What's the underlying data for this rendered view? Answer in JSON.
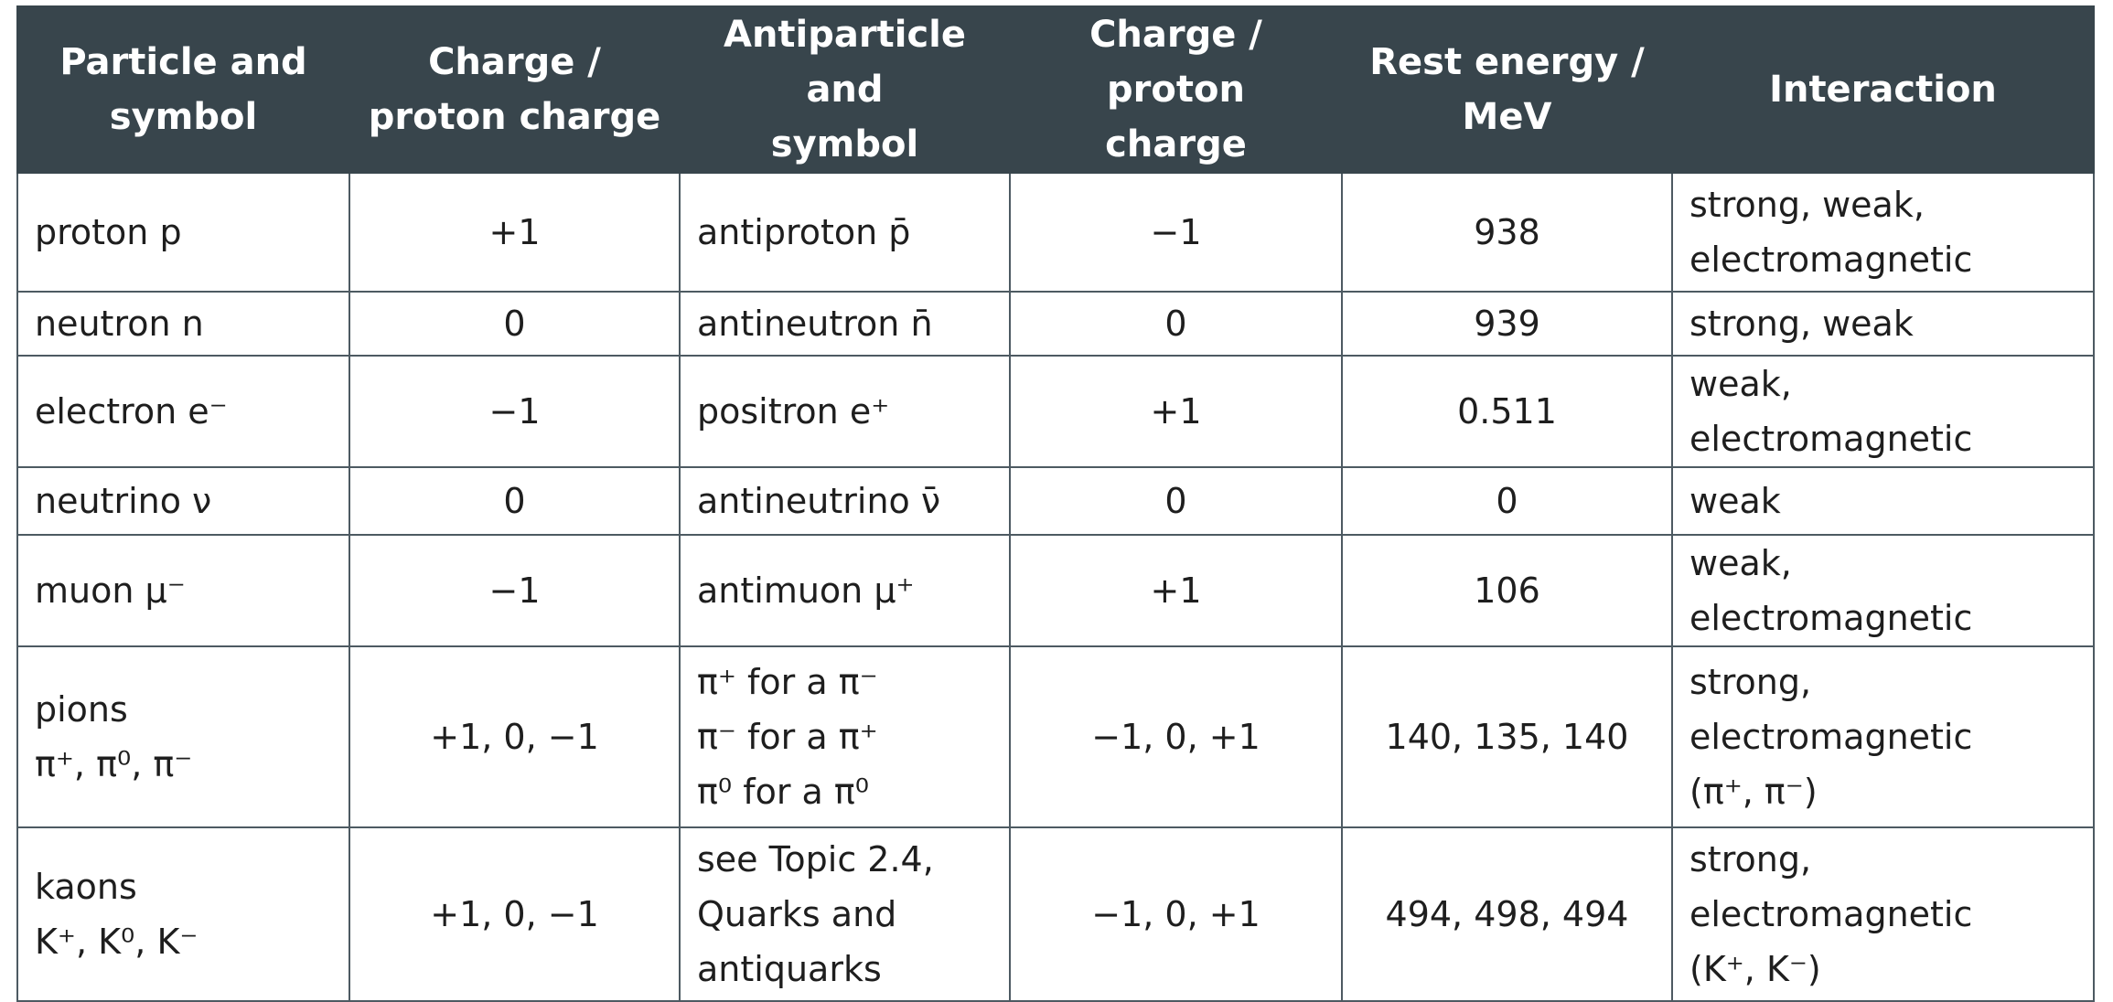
{
  "headers": [
    {
      "line1": "Particle and",
      "line2": "symbol"
    },
    {
      "line1": "Charge /",
      "line2": "proton charge"
    },
    {
      "line1": "Antiparticle and",
      "line2": "symbol"
    },
    {
      "line1": "Charge / proton",
      "line2": "charge"
    },
    {
      "line1": "Rest energy /",
      "line2": "MeV"
    },
    {
      "line1": "Interaction",
      "line2": ""
    }
  ],
  "rows": [
    {
      "particle": [
        "proton p"
      ],
      "charge": "+1",
      "antiparticle": [
        "antiproton p̄"
      ],
      "anti_charge": "−1",
      "rest_energy": "938",
      "interaction": [
        "strong, weak,",
        "electromagnetic"
      ]
    },
    {
      "particle": [
        "neutron n"
      ],
      "charge": "0",
      "antiparticle": [
        "antineutron n̄"
      ],
      "anti_charge": "0",
      "rest_energy": "939",
      "interaction": [
        "strong, weak"
      ]
    },
    {
      "particle": [
        "electron e⁻"
      ],
      "charge": "−1",
      "antiparticle": [
        "positron e⁺"
      ],
      "anti_charge": "+1",
      "rest_energy": "0.511",
      "interaction": [
        "weak, electromagnetic"
      ]
    },
    {
      "particle": [
        "neutrino ν"
      ],
      "charge": "0",
      "antiparticle": [
        "antineutrino ν̄"
      ],
      "anti_charge": "0",
      "rest_energy": "0",
      "interaction": [
        "weak"
      ]
    },
    {
      "particle": [
        "muon μ⁻"
      ],
      "charge": "−1",
      "antiparticle": [
        "antimuon μ⁺"
      ],
      "anti_charge": "+1",
      "rest_energy": "106",
      "interaction": [
        "weak, electromagnetic"
      ]
    },
    {
      "particle": [
        "pions",
        "π⁺, π⁰, π⁻"
      ],
      "charge": "+1, 0, −1",
      "antiparticle": [
        "π⁺ for a π⁻",
        "π⁻ for a π⁺",
        "π⁰ for a π⁰"
      ],
      "anti_charge": "−1, 0, +1",
      "rest_energy": "140, 135, 140",
      "interaction": [
        "strong,",
        "electromagnetic",
        "(π⁺, π⁻)"
      ]
    },
    {
      "particle": [
        "kaons",
        "K⁺, K⁰, K⁻"
      ],
      "charge": "+1, 0, −1",
      "antiparticle": [
        "see Topic 2.4,",
        "Quarks and",
        "antiquarks"
      ],
      "anti_charge": "−1, 0, +1",
      "rest_energy": "494, 498, 494",
      "interaction": [
        "strong, electromagnetic",
        "(K⁺, K⁻)"
      ]
    }
  ]
}
